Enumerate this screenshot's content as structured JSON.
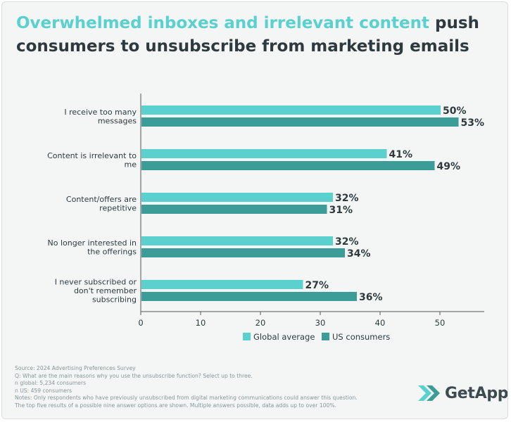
{
  "title": {
    "highlight": "Overwhelmed inboxes and irrelevant content",
    "rest": " push consumers to unsubscribe from marketing emails"
  },
  "colors": {
    "global": "#5ad0cf",
    "us": "#3b9c98",
    "text": "#2e3a3e",
    "axis": "#555555"
  },
  "chart_data": {
    "type": "bar",
    "orientation": "horizontal",
    "categories": [
      [
        "I receive too many",
        "messages"
      ],
      [
        "Content is irrelevant to",
        "me"
      ],
      [
        "Content/offers are",
        "repetitive"
      ],
      [
        "No longer interested in",
        "the offerings"
      ],
      [
        "I never subscribed or",
        "don't remember",
        "subscribing"
      ]
    ],
    "series": [
      {
        "name": "Global average",
        "values": [
          50,
          41,
          32,
          32,
          27
        ],
        "labels": [
          "50%",
          "41%",
          "32%",
          "32%",
          "27%"
        ]
      },
      {
        "name": "US consumers",
        "values": [
          53,
          49,
          31,
          34,
          36
        ],
        "labels": [
          "53%",
          "49%",
          "31%",
          "34%",
          "36%"
        ]
      }
    ],
    "xlim": [
      0,
      55
    ],
    "xticks": [
      0,
      10,
      20,
      30,
      40,
      50
    ],
    "legend_position": "bottom"
  },
  "notes": [
    "Source: 2024 Advertising Preferences Survey",
    "Q: What are the main reasons why you use the unsubscribe function? Select up to three.",
    "n global: 5,234 consumers",
    "n US: 459 consumers",
    "Notes: Only respondents who have previously unsubscribed from digital marketing communications could answer this question.",
    "The top five results of a possible nine answer options are shown. Multiple answers possible, data adds up to over 100%."
  ],
  "logo": {
    "text": "GetApp"
  }
}
